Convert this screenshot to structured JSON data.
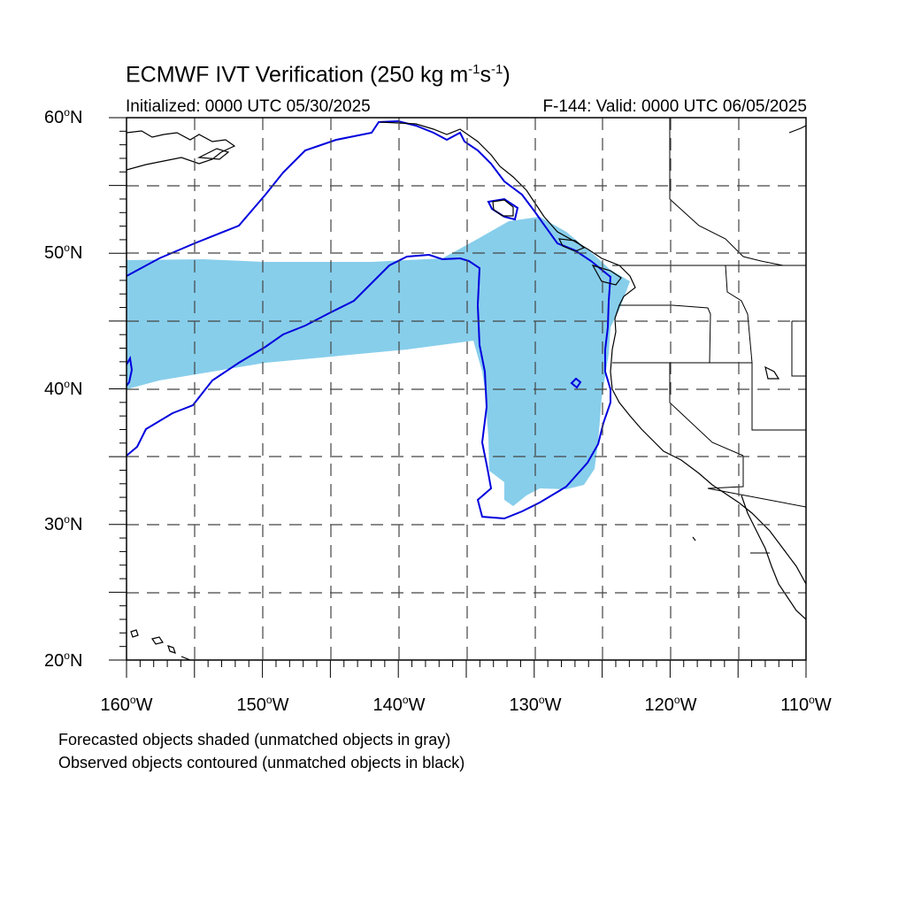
{
  "title": {
    "prefix": "ECMWF IVT Verification (250 kg m",
    "exp1": "-1",
    "middle": "s",
    "exp2": "-1",
    "suffix": ")"
  },
  "subtitle_left": "Initialized: 0000 UTC 05/30/2025",
  "subtitle_right": "F-144: Valid: 0000 UTC 06/05/2025",
  "axes": {
    "lat_ticks": [
      {
        "num": "60",
        "hem": "N"
      },
      {
        "num": "50",
        "hem": "N"
      },
      {
        "num": "40",
        "hem": "N"
      },
      {
        "num": "30",
        "hem": "N"
      },
      {
        "num": "20",
        "hem": "N"
      }
    ],
    "lon_ticks": [
      {
        "num": "160",
        "hem": "W"
      },
      {
        "num": "150",
        "hem": "W"
      },
      {
        "num": "140",
        "hem": "W"
      },
      {
        "num": "130",
        "hem": "W"
      },
      {
        "num": "120",
        "hem": "W"
      },
      {
        "num": "110",
        "hem": "W"
      }
    ],
    "lat_range": [
      20,
      60
    ],
    "lon_range": [
      -160,
      -110
    ],
    "grid": "dashed, every 5 degrees"
  },
  "legend": {
    "line1": "Forecasted objects shaded (unmatched objects in gray)",
    "line2": "Observed objects contoured (unmatched objects in black)"
  },
  "colors": {
    "forecast_fill": "#87ceeb",
    "observed_contour": "#0000dd",
    "coastline": "#000000",
    "grid": "#444444"
  }
}
